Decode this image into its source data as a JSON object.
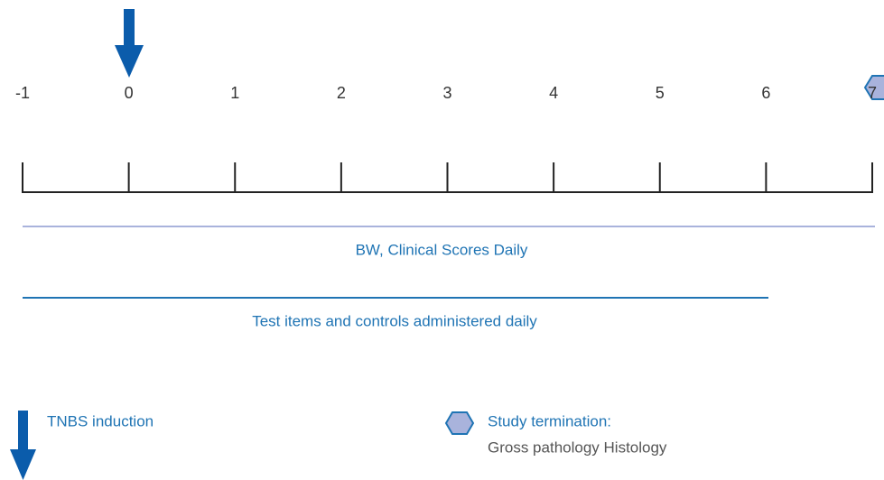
{
  "timeline": {
    "ticks": [
      "-1",
      "0",
      "1",
      "2",
      "3",
      "4",
      "5",
      "6",
      "7"
    ]
  },
  "phases": [
    {
      "label": "BW, Clinical Scores Daily"
    },
    {
      "label": "Test items and controls administered daily"
    }
  ],
  "legend": {
    "induction": "TNBS induction",
    "termination_title": "Study termination:",
    "termination_detail": "Gross pathology Histology"
  }
}
